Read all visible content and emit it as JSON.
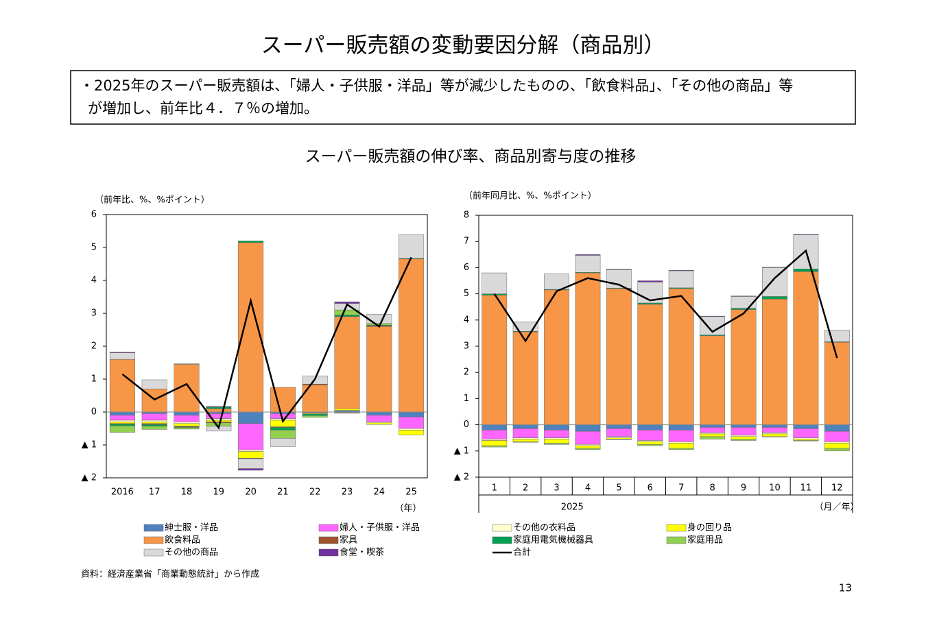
{
  "title": "スーパー販売額の変動要因分解（商品別）",
  "summary": [
    "・2025年のスーパー販売額は、「婦人・子供服・洋品」等が減少したものの、「飲食料品」、「その他の商品」等",
    "が増加し、前年比４．７％の増加。"
  ],
  "subtitle": "スーパー販売額の伸び率、商品別寄与度の推移",
  "source": "資料：経済産業省「商業動態統計」から作成",
  "page_number": "13",
  "chart_data": [
    {
      "type": "bar",
      "y_label": "（前年比、%、%ポイント）",
      "x_label": "（年）",
      "categories": [
        "2016",
        "17",
        "18",
        "19",
        "20",
        "21",
        "22",
        "23",
        "24",
        "25"
      ],
      "ylim": [
        -2,
        6
      ],
      "yticks": [
        6,
        5,
        4,
        3,
        2,
        1,
        0,
        {
          "value": -1,
          "label": "▲ 1"
        },
        {
          "value": -2,
          "label": "▲ 2"
        }
      ],
      "series": [
        {
          "name": "紳士服・洋品",
          "color": "#4f81bd",
          "values": [
            -0.1,
            -0.05,
            -0.1,
            -0.05,
            -0.35,
            -0.05,
            0,
            0.05,
            -0.1,
            -0.15
          ]
        },
        {
          "name": "婦人・子供服・洋品",
          "color": "#ff66ff",
          "values": [
            -0.15,
            -0.2,
            -0.2,
            -0.15,
            -0.8,
            -0.15,
            -0.02,
            -0.02,
            -0.2,
            -0.35
          ]
        },
        {
          "name": "その他の衣料品",
          "color": "#ffffcc",
          "values": [
            -0.05,
            -0.05,
            -0.05,
            -0.05,
            -0.05,
            -0.05,
            -0.02,
            -0.02,
            -0.03,
            -0.05
          ]
        },
        {
          "name": "身の回り品",
          "color": "#ffff00",
          "values": [
            -0.05,
            -0.05,
            -0.08,
            -0.05,
            -0.2,
            -0.2,
            -0.02,
            0.05,
            -0.05,
            -0.15
          ]
        },
        {
          "name": "飲食料品",
          "color": "#f79646",
          "values": [
            1.6,
            0.7,
            1.45,
            0.1,
            5.15,
            0.75,
            0.82,
            2.8,
            2.6,
            4.65
          ]
        },
        {
          "name": "家具",
          "color": "#a0522d",
          "values": [
            -0.02,
            -0.03,
            -0.02,
            -0.03,
            -0.02,
            -0.02,
            0.03,
            0,
            0.02,
            0
          ]
        },
        {
          "name": "家庭用電気機械器具",
          "color": "#00a050",
          "values": [
            -0.05,
            -0.05,
            -0.02,
            0.05,
            0.05,
            -0.08,
            -0.05,
            0.05,
            0.02,
            0.02
          ]
        },
        {
          "name": "家庭用品",
          "color": "#92d050",
          "values": [
            -0.2,
            -0.1,
            -0.05,
            -0.1,
            0,
            -0.25,
            -0.05,
            0.15,
            0.05,
            0
          ]
        },
        {
          "name": "その他の商品",
          "color": "#d9d9d9",
          "values": [
            0.2,
            0.28,
            0.02,
            -0.15,
            -0.3,
            -0.25,
            0.25,
            0.2,
            0.28,
            0.72
          ]
        },
        {
          "name": "食堂・喫茶",
          "color": "#7030a0",
          "values": [
            0.02,
            0,
            0,
            0.02,
            -0.05,
            0,
            0,
            0.05,
            0,
            0
          ]
        },
        {
          "name": "合計",
          "color": "#000000",
          "type": "line",
          "values": [
            1.15,
            0.38,
            0.85,
            -0.48,
            3.38,
            -0.28,
            1.0,
            3.27,
            2.6,
            4.7
          ]
        }
      ]
    },
    {
      "type": "bar",
      "y_label": "（前年同月比、%、%ポイント）",
      "x_label": "（月／年）",
      "period": "2025",
      "categories": [
        "1",
        "2",
        "3",
        "4",
        "5",
        "6",
        "7",
        "8",
        "9",
        "10",
        "11",
        "12"
      ],
      "ylim": [
        -2,
        8
      ],
      "yticks": [
        8,
        7,
        6,
        5,
        4,
        3,
        2,
        1,
        0,
        {
          "value": -1,
          "label": "▲ 1"
        },
        {
          "value": -2,
          "label": "▲ 2"
        }
      ],
      "series": [
        {
          "values": [
            -0.2,
            -0.15,
            -0.2,
            -0.25,
            -0.15,
            -0.2,
            -0.2,
            -0.1,
            -0.1,
            -0.1,
            -0.15,
            -0.25
          ]
        },
        {
          "values": [
            -0.35,
            -0.35,
            -0.3,
            -0.5,
            -0.3,
            -0.4,
            -0.45,
            -0.2,
            -0.3,
            -0.2,
            -0.35,
            -0.4
          ]
        },
        {
          "values": [
            -0.05,
            -0.05,
            -0.05,
            -0.05,
            -0.05,
            -0.05,
            -0.05,
            -0.05,
            -0.05,
            -0.05,
            -0.05,
            -0.05
          ]
        },
        {
          "values": [
            -0.2,
            -0.1,
            -0.15,
            -0.1,
            -0.05,
            -0.1,
            -0.2,
            -0.1,
            -0.1,
            -0.1,
            -0.05,
            -0.2
          ]
        },
        {
          "values": [
            4.95,
            3.55,
            5.15,
            5.8,
            5.2,
            4.6,
            5.2,
            3.4,
            4.4,
            4.8,
            5.85,
            3.15
          ]
        },
        {
          "values": [
            0,
            0,
            0,
            0,
            0,
            0,
            0,
            0,
            0,
            0,
            0,
            0
          ]
        },
        {
          "values": [
            0.05,
            0.02,
            0.02,
            0.02,
            0.02,
            0.05,
            0.03,
            0.03,
            0.05,
            0.1,
            0.1,
            0.02
          ]
        },
        {
          "values": [
            -0.05,
            -0.02,
            -0.05,
            -0.05,
            -0.02,
            -0.05,
            -0.05,
            -0.1,
            -0.05,
            -0.02,
            -0.02,
            -0.1
          ]
        },
        {
          "values": [
            0.8,
            0.35,
            0.6,
            0.65,
            0.7,
            0.8,
            0.65,
            0.7,
            0.45,
            1.1,
            1.3,
            0.45
          ]
        },
        {
          "values": [
            0,
            0,
            0,
            0.03,
            0.02,
            0.05,
            0.02,
            0.02,
            0.02,
            0.02,
            0.02,
            0
          ]
        },
        {
          "values": [
            5.0,
            3.2,
            5.1,
            5.6,
            5.35,
            4.75,
            4.92,
            3.55,
            4.25,
            5.6,
            6.65,
            2.55
          ]
        }
      ]
    }
  ]
}
